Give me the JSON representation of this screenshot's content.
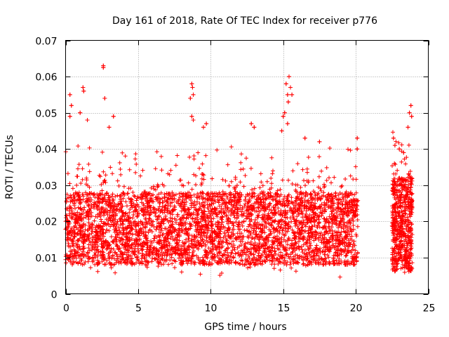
{
  "chart_data": {
    "type": "scatter",
    "title": "Day 161 of 2018, Rate Of TEC Index for receiver p776",
    "xlabel": "GPS time / hours",
    "ylabel": "ROTI / TECUs",
    "xlim": [
      0,
      25
    ],
    "ylim": [
      0,
      0.07
    ],
    "x_ticks": [
      0,
      5,
      10,
      15,
      20,
      25
    ],
    "x_tick_labels": [
      "0",
      "5",
      "10",
      "15",
      "20",
      "25"
    ],
    "y_ticks": [
      0,
      0.01,
      0.02,
      0.03,
      0.04,
      0.05,
      0.06,
      0.07
    ],
    "y_tick_labels": [
      "0",
      "0.01",
      "0.02",
      "0.03",
      "0.04",
      "0.05",
      "0.06",
      "0.07"
    ],
    "grid": true,
    "marker": "+",
    "color": "#ff0000",
    "series": [
      {
        "name": "ROTI",
        "segments": [
          {
            "x_start": 0.0,
            "x_end": 20.15,
            "typical_low": 0.008,
            "typical_high": 0.028
          },
          {
            "x_start": 22.5,
            "x_end": 23.9,
            "typical_low": 0.006,
            "typical_high": 0.032
          }
        ],
        "highlights": [
          {
            "x": 2.6,
            "y": 0.063
          },
          {
            "x": 2.6,
            "y": 0.0625
          },
          {
            "x": 2.7,
            "y": 0.054
          },
          {
            "x": 1.2,
            "y": 0.057
          },
          {
            "x": 1.25,
            "y": 0.056
          },
          {
            "x": 1.0,
            "y": 0.05
          },
          {
            "x": 0.3,
            "y": 0.055
          },
          {
            "x": 0.3,
            "y": 0.049
          },
          {
            "x": 0.4,
            "y": 0.052
          },
          {
            "x": 1.5,
            "y": 0.048
          },
          {
            "x": 3.3,
            "y": 0.049
          },
          {
            "x": 3.0,
            "y": 0.046
          },
          {
            "x": 8.7,
            "y": 0.058
          },
          {
            "x": 8.75,
            "y": 0.057
          },
          {
            "x": 8.8,
            "y": 0.055
          },
          {
            "x": 8.6,
            "y": 0.054
          },
          {
            "x": 8.7,
            "y": 0.049
          },
          {
            "x": 8.8,
            "y": 0.048
          },
          {
            "x": 9.5,
            "y": 0.046
          },
          {
            "x": 9.7,
            "y": 0.047
          },
          {
            "x": 12.8,
            "y": 0.047
          },
          {
            "x": 13.0,
            "y": 0.046
          },
          {
            "x": 15.2,
            "y": 0.058
          },
          {
            "x": 15.3,
            "y": 0.055
          },
          {
            "x": 15.4,
            "y": 0.06
          },
          {
            "x": 15.5,
            "y": 0.057
          },
          {
            "x": 15.1,
            "y": 0.05
          },
          {
            "x": 15.0,
            "y": 0.049
          },
          {
            "x": 15.35,
            "y": 0.053
          },
          {
            "x": 15.6,
            "y": 0.055
          },
          {
            "x": 15.3,
            "y": 0.047
          },
          {
            "x": 14.9,
            "y": 0.045
          },
          {
            "x": 16.5,
            "y": 0.043
          },
          {
            "x": 17.5,
            "y": 0.042
          },
          {
            "x": 20.1,
            "y": 0.043
          },
          {
            "x": 20.1,
            "y": 0.04
          },
          {
            "x": 23.8,
            "y": 0.052
          },
          {
            "x": 23.7,
            "y": 0.05
          },
          {
            "x": 23.85,
            "y": 0.049
          },
          {
            "x": 23.6,
            "y": 0.046
          },
          {
            "x": 22.6,
            "y": 0.043
          },
          {
            "x": 22.7,
            "y": 0.041
          },
          {
            "x": 23.0,
            "y": 0.04
          },
          {
            "x": 23.3,
            "y": 0.039
          }
        ]
      }
    ]
  }
}
